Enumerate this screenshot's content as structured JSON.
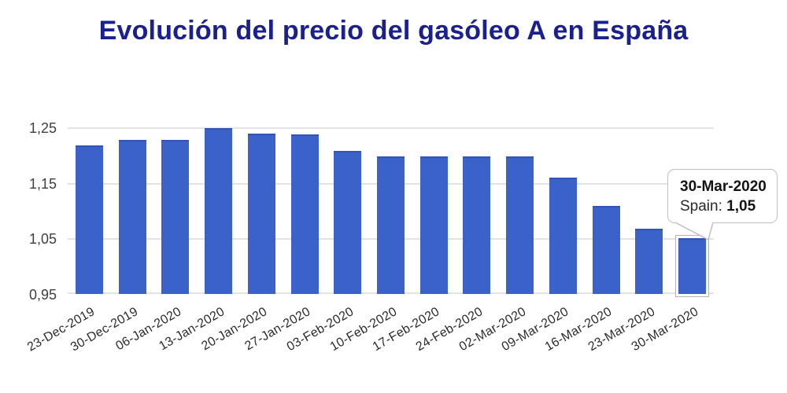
{
  "page": {
    "title": "Evolución del precio del gasóleo A en España"
  },
  "tooltip": {
    "date": "30-Mar-2020",
    "series_label": "Spain:",
    "value": "1,05"
  },
  "chart_data": {
    "type": "bar",
    "title": "Evolución del precio del gasóleo A en España",
    "categories": [
      "23-Dec-2019",
      "30-Dec-2019",
      "06-Jan-2020",
      "13-Jan-2020",
      "20-Jan-2020",
      "27-Jan-2020",
      "03-Feb-2020",
      "10-Feb-2020",
      "17-Feb-2020",
      "24-Feb-2020",
      "02-Mar-2020",
      "09-Mar-2020",
      "16-Mar-2020",
      "23-Mar-2020",
      "30-Mar-2020"
    ],
    "series": [
      {
        "name": "Spain",
        "values": [
          1.218,
          1.228,
          1.228,
          1.248,
          1.238,
          1.237,
          1.208,
          1.198,
          1.198,
          1.198,
          1.198,
          1.159,
          1.109,
          1.068,
          1.05
        ]
      }
    ],
    "xlabel": "",
    "ylabel": "",
    "ylim": [
      0.95,
      1.25
    ],
    "yticks": [
      {
        "value": 1.25,
        "label": "1,25"
      },
      {
        "value": 1.15,
        "label": "1,15"
      },
      {
        "value": 1.05,
        "label": "1,05"
      },
      {
        "value": 0.95,
        "label": "0,95"
      }
    ],
    "grid": true,
    "legend_position": "none",
    "bar_color": "#3a62c9",
    "highlighted_index": 14,
    "highlight_tooltip": {
      "date": "30-Mar-2020",
      "series": "Spain",
      "value": 1.05,
      "value_label": "1,05"
    }
  },
  "colors": {
    "bar": "#3a62c9",
    "title": "#1b2090",
    "grid": "#e3e3e3",
    "axis_text": "#3f3f3f",
    "tooltip_border": "#c0c0c0"
  }
}
